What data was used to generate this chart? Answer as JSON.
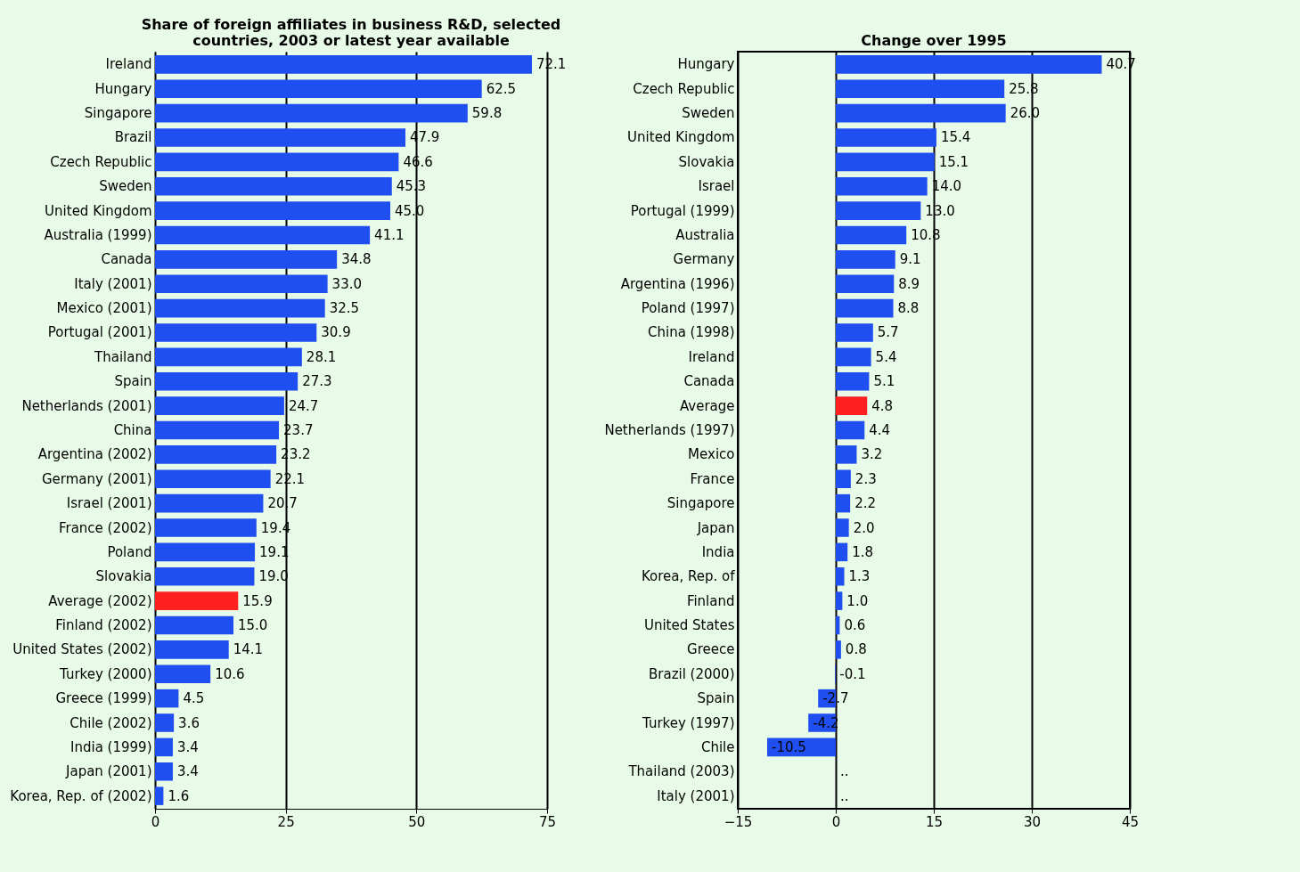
{
  "chart_data": [
    {
      "type": "bar",
      "orientation": "horizontal",
      "title": "Share of foreign affiliates in business R&D, selected\ncountries, 2003 or latest year available",
      "categories": [
        "Ireland",
        "Hungary",
        "Singapore",
        "Brazil",
        "Czech Republic",
        "Sweden",
        "United Kingdom",
        "Australia (1999)",
        "Canada",
        "Italy (2001)",
        "Mexico (2001)",
        "Portugal (2001)",
        "Thailand",
        "Spain",
        "Netherlands (2001)",
        "China",
        "Argentina (2002)",
        "Germany (2001)",
        "Israel (2001)",
        "France (2002)",
        "Poland",
        "Slovakia",
        "Average (2002)",
        "Finland (2002)",
        "United States (2002)",
        "Turkey (2000)",
        "Greece (1999)",
        "Chile (2002)",
        "India (1999)",
        "Japan (2001)",
        "Korea, Rep. of (2002)"
      ],
      "values": [
        72.1,
        62.5,
        59.8,
        47.9,
        46.6,
        45.3,
        45.0,
        41.1,
        34.8,
        33.0,
        32.5,
        30.9,
        28.1,
        27.3,
        24.7,
        23.7,
        23.2,
        22.1,
        20.7,
        19.4,
        19.1,
        19.0,
        15.9,
        15.0,
        14.1,
        10.6,
        4.5,
        3.6,
        3.4,
        3.4,
        1.6
      ],
      "value_labels": [
        "72.1",
        "62.5",
        "59.8",
        "47.9",
        "46.6",
        "45.3",
        "45.0",
        "41.1",
        "34.8",
        "33.0",
        "32.5",
        "30.9",
        "28.1",
        "27.3",
        "24.7",
        "23.7",
        "23.2",
        "22.1",
        "20.7",
        "19.4",
        "19.1",
        "19.0",
        "15.9",
        "15.0",
        "14.1",
        "10.6",
        "4.5",
        "3.6",
        "3.4",
        "3.4",
        "1.6"
      ],
      "colors": [
        "#1f4ff0",
        "#1f4ff0",
        "#1f4ff0",
        "#1f4ff0",
        "#1f4ff0",
        "#1f4ff0",
        "#1f4ff0",
        "#1f4ff0",
        "#1f4ff0",
        "#1f4ff0",
        "#1f4ff0",
        "#1f4ff0",
        "#1f4ff0",
        "#1f4ff0",
        "#1f4ff0",
        "#1f4ff0",
        "#1f4ff0",
        "#1f4ff0",
        "#1f4ff0",
        "#1f4ff0",
        "#1f4ff0",
        "#1f4ff0",
        "#ff2020",
        "#1f4ff0",
        "#1f4ff0",
        "#1f4ff0",
        "#1f4ff0",
        "#1f4ff0",
        "#1f4ff0",
        "#1f4ff0",
        "#1f4ff0"
      ],
      "xlim": [
        0,
        75
      ],
      "xticks": [
        0,
        25,
        50,
        75
      ],
      "grid": "x"
    },
    {
      "type": "bar",
      "orientation": "horizontal",
      "title": "Change over 1995",
      "categories": [
        "Hungary",
        "Czech Republic",
        "Sweden",
        "United Kingdom",
        "Slovakia",
        "Israel",
        "Portugal (1999)",
        "Australia",
        "Germany",
        "Argentina (1996)",
        "Poland (1997)",
        "China (1998)",
        "Ireland",
        "Canada",
        "Average",
        "Netherlands (1997)",
        "Mexico",
        "France",
        "Singapore",
        "Japan",
        "India",
        "Korea, Rep. of",
        "Finland",
        "United States",
        "Greece",
        "Brazil (2000)",
        "Spain",
        "Turkey (1997)",
        "Chile",
        "Thailand (2003)",
        "Italy (2001)"
      ],
      "values": [
        40.7,
        25.8,
        26.0,
        15.4,
        15.1,
        14.0,
        13.0,
        10.8,
        9.1,
        8.9,
        8.8,
        5.7,
        5.4,
        5.1,
        4.8,
        4.4,
        3.2,
        2.3,
        2.2,
        2.0,
        1.8,
        1.3,
        1.0,
        0.6,
        0.8,
        -0.1,
        -2.7,
        -4.2,
        -10.5,
        null,
        null
      ],
      "value_labels": [
        "40.7",
        "25.8",
        "26.0",
        "15.4",
        "15.1",
        "14.0",
        "13.0",
        "10.8",
        "9.1",
        "8.9",
        "8.8",
        "5.7",
        "5.4",
        "5.1",
        "4.8",
        "4.4",
        "3.2",
        "2.3",
        "2.2",
        "2.0",
        "1.8",
        "1.3",
        "1.0",
        "0.6",
        "0.8",
        "-0.1",
        "-2.7",
        "-4.2",
        "-10.5",
        "..",
        ".."
      ],
      "colors": [
        "#1f4ff0",
        "#1f4ff0",
        "#1f4ff0",
        "#1f4ff0",
        "#1f4ff0",
        "#1f4ff0",
        "#1f4ff0",
        "#1f4ff0",
        "#1f4ff0",
        "#1f4ff0",
        "#1f4ff0",
        "#1f4ff0",
        "#1f4ff0",
        "#1f4ff0",
        "#ff2020",
        "#1f4ff0",
        "#1f4ff0",
        "#1f4ff0",
        "#1f4ff0",
        "#1f4ff0",
        "#1f4ff0",
        "#1f4ff0",
        "#1f4ff0",
        "#1f4ff0",
        "#1f4ff0",
        "#1f4ff0",
        "#1f4ff0",
        "#1f4ff0",
        "#1f4ff0",
        "#1f4ff0",
        "#1f4ff0"
      ],
      "xlim": [
        -15,
        45
      ],
      "xticks": [
        -15,
        0,
        15,
        30,
        45
      ],
      "grid": "x"
    }
  ]
}
